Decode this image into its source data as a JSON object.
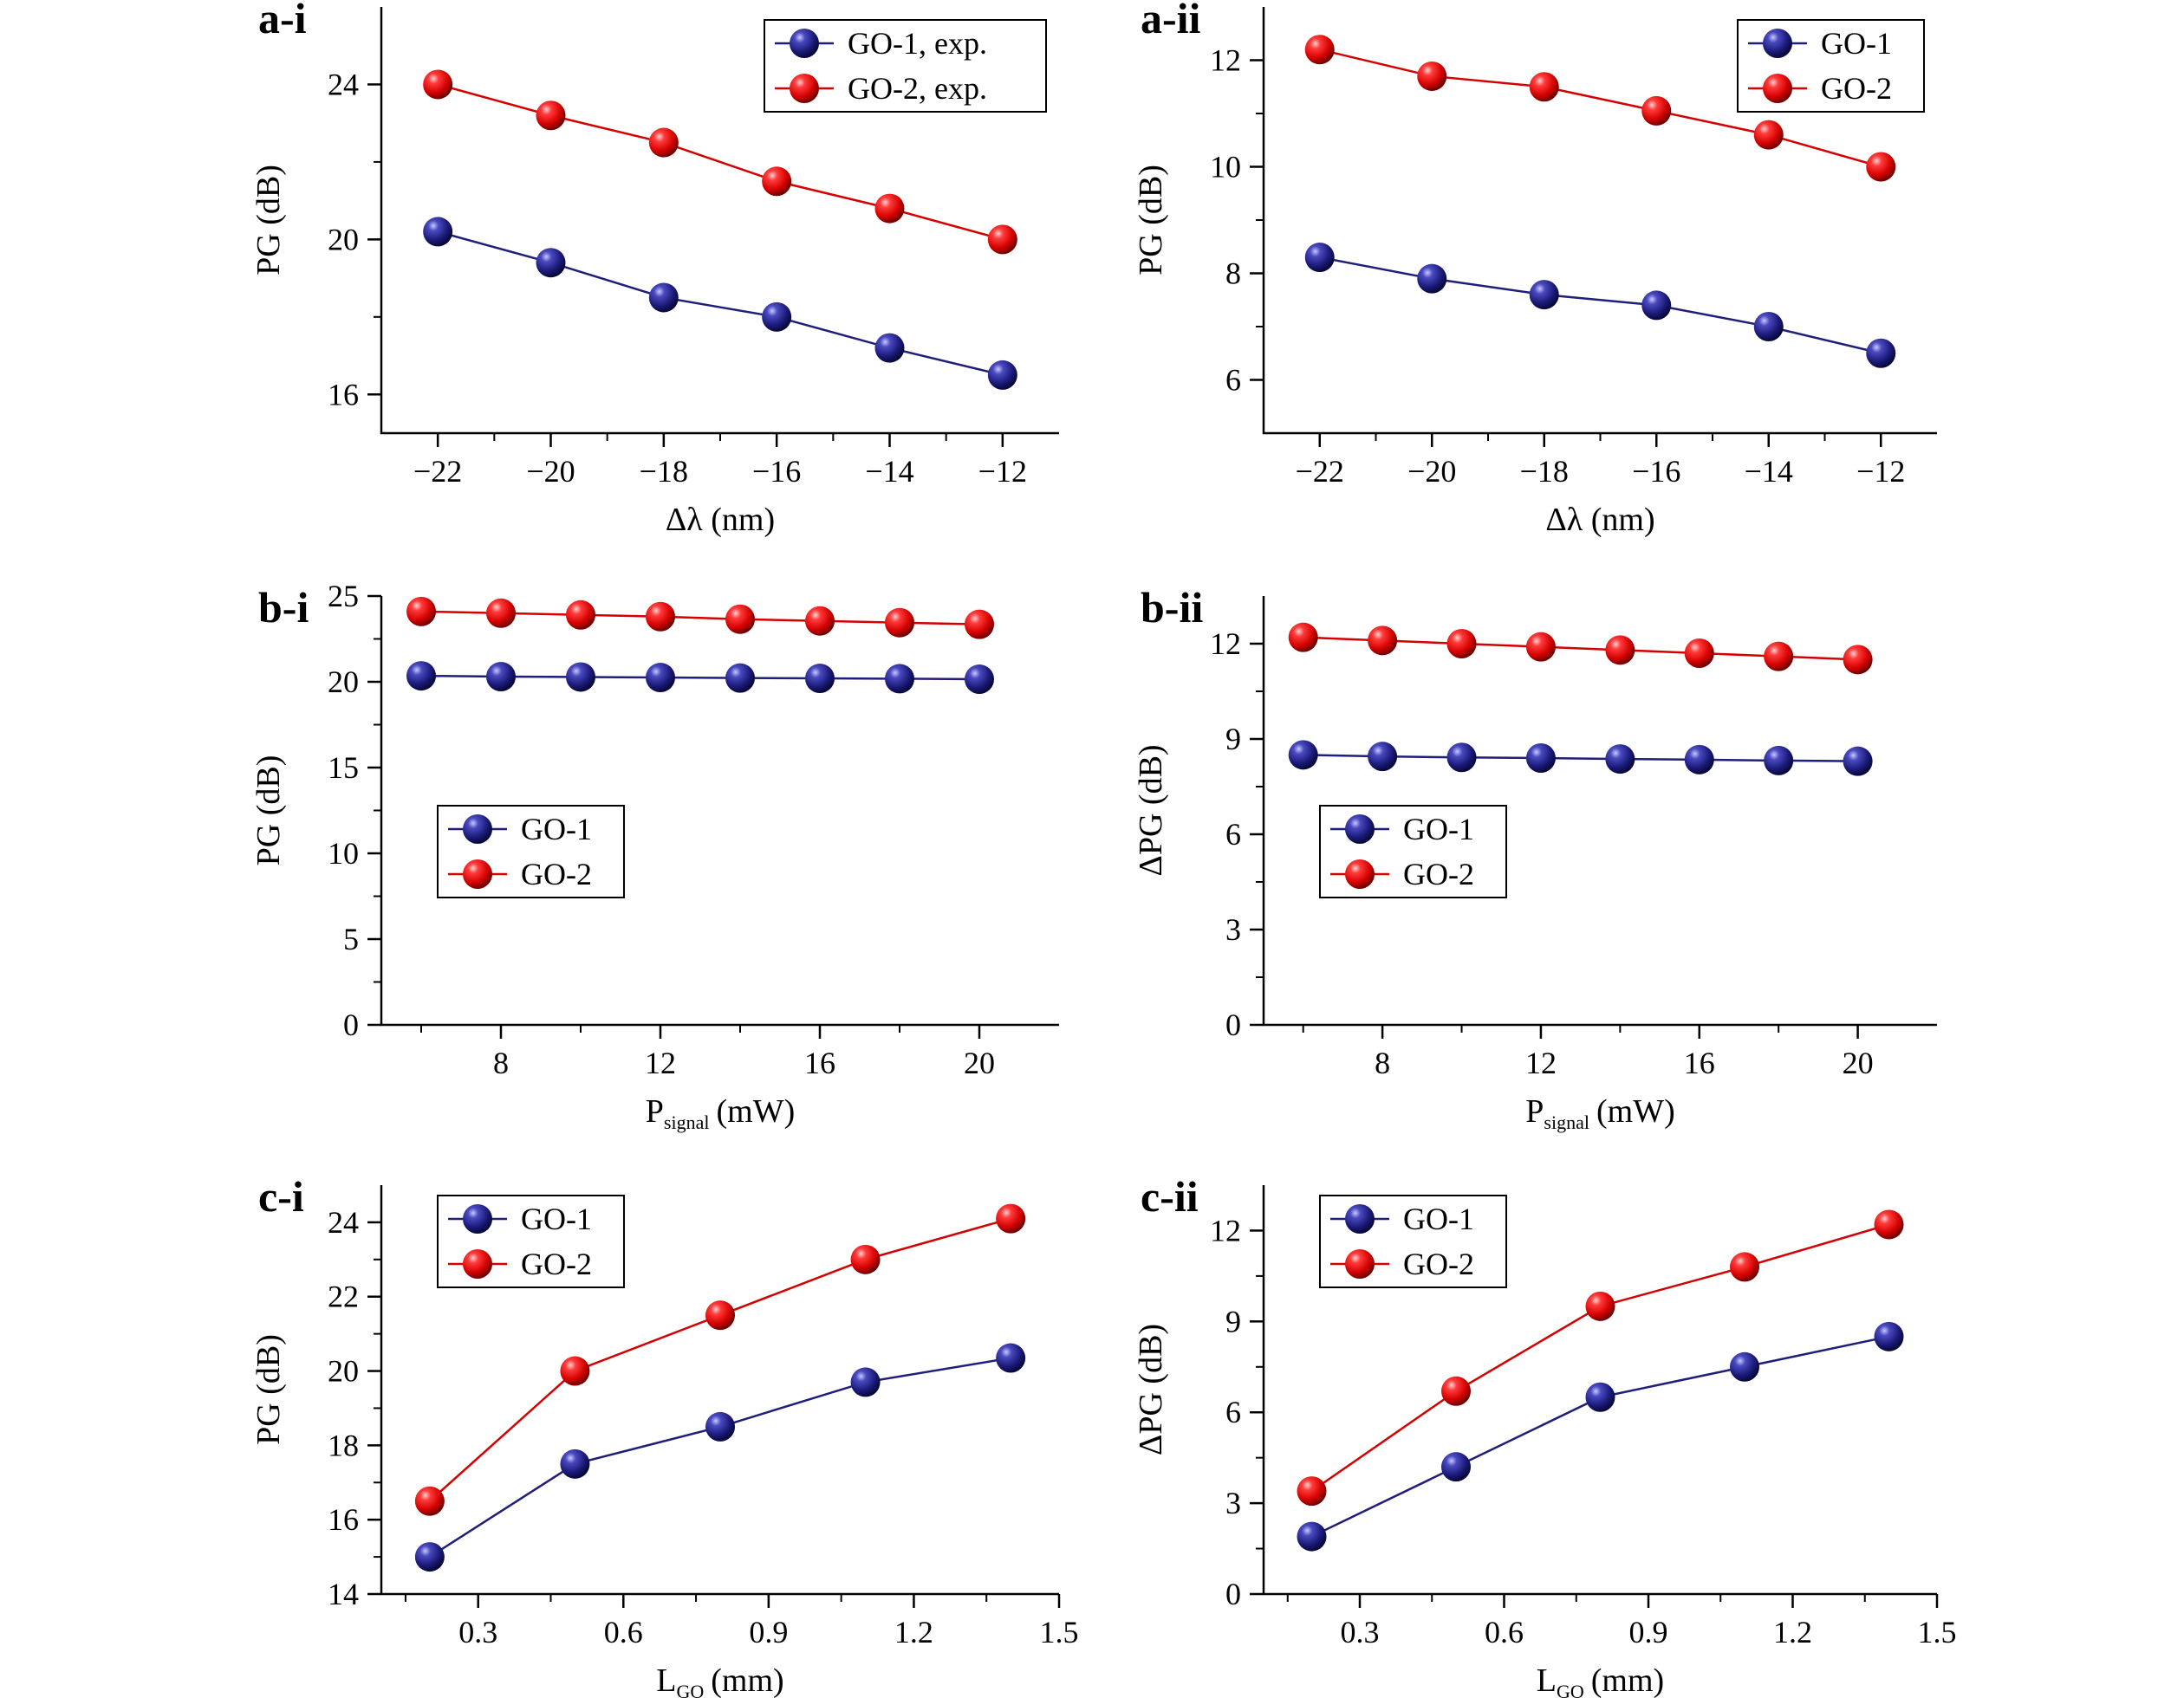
{
  "chart_data": [
    {
      "type": "line",
      "panel_label": "a-i",
      "xlabel": "Δλ (nm)",
      "ylabel": "PG (dB)",
      "xlim": [
        -23,
        -11
      ],
      "ylim": [
        15,
        26
      ],
      "xticks": [
        -22,
        -20,
        -18,
        -16,
        -14,
        -12
      ],
      "xtick_labels": [
        "−22",
        "−20",
        "−18",
        "−16",
        "−14",
        "−12"
      ],
      "yticks": [
        16,
        20,
        24
      ],
      "ytick_labels": [
        "16",
        "20",
        "24"
      ],
      "legend_position": "top-right",
      "x": [
        -22,
        -20,
        -18,
        -16,
        -14,
        -12
      ],
      "series": [
        {
          "name": "GO-1, exp.",
          "color": "#1f1f7a",
          "values": [
            20.2,
            19.4,
            18.5,
            18.0,
            17.2,
            16.5
          ]
        },
        {
          "name": "GO-2, exp.",
          "color": "#d40000",
          "values": [
            24.0,
            23.2,
            22.5,
            21.5,
            20.8,
            20.0
          ]
        }
      ]
    },
    {
      "type": "line",
      "panel_label": "a-ii",
      "xlabel": "Δλ (nm)",
      "ylabel": "PG (dB)",
      "xlim": [
        -23,
        -11
      ],
      "ylim": [
        5,
        13
      ],
      "xticks": [
        -22,
        -20,
        -18,
        -16,
        -14,
        -12
      ],
      "xtick_labels": [
        "−22",
        "−20",
        "−18",
        "−16",
        "−14",
        "−12"
      ],
      "yticks": [
        6,
        8,
        10,
        12
      ],
      "ytick_labels": [
        "6",
        "8",
        "10",
        "12"
      ],
      "legend_position": "top-right",
      "x": [
        -22,
        -20,
        -18,
        -16,
        -14,
        -12
      ],
      "series": [
        {
          "name": "GO-1",
          "color": "#1f1f7a",
          "values": [
            8.3,
            7.9,
            7.6,
            7.4,
            7.0,
            6.5
          ]
        },
        {
          "name": "GO-2",
          "color": "#d40000",
          "values": [
            12.2,
            11.7,
            11.5,
            11.05,
            10.6,
            10.0
          ]
        }
      ]
    },
    {
      "type": "line",
      "panel_label": "b-i",
      "xlabel_main": "P",
      "xlabel_sub": "signal",
      "xlabel_unit": "(mW)",
      "ylabel": "PG (dB)",
      "xlim": [
        5,
        22
      ],
      "ylim": [
        0,
        25
      ],
      "xticks": [
        8,
        12,
        16,
        20
      ],
      "xtick_labels": [
        "8",
        "12",
        "16",
        "20"
      ],
      "yticks": [
        0,
        5,
        10,
        15,
        20,
        25
      ],
      "ytick_labels": [
        "0",
        "5",
        "10",
        "15",
        "20",
        "25"
      ],
      "legend_position": "center-left",
      "x": [
        6,
        8,
        10,
        12,
        14,
        16,
        18,
        20
      ],
      "series": [
        {
          "name": "GO-1",
          "color": "#1f1f7a",
          "values": [
            20.35,
            20.3,
            20.28,
            20.25,
            20.22,
            20.2,
            20.18,
            20.15
          ]
        },
        {
          "name": "GO-2",
          "color": "#d40000",
          "values": [
            24.1,
            24.0,
            23.9,
            23.8,
            23.65,
            23.55,
            23.45,
            23.35
          ]
        }
      ]
    },
    {
      "type": "line",
      "panel_label": "b-ii",
      "xlabel_main": "P",
      "xlabel_sub": "signal",
      "xlabel_unit": "(mW)",
      "ylabel": "ΔPG (dB)",
      "xlim": [
        5,
        22
      ],
      "ylim": [
        0,
        13.5
      ],
      "xticks": [
        8,
        12,
        16,
        20
      ],
      "xtick_labels": [
        "8",
        "12",
        "16",
        "20"
      ],
      "yticks": [
        0,
        3,
        6,
        9,
        12
      ],
      "ytick_labels": [
        "0",
        "3",
        "6",
        "9",
        "12"
      ],
      "legend_position": "center-left",
      "x": [
        6,
        8,
        10,
        12,
        14,
        16,
        18,
        20
      ],
      "series": [
        {
          "name": "GO-1",
          "color": "#1f1f7a",
          "values": [
            8.5,
            8.45,
            8.42,
            8.4,
            8.37,
            8.35,
            8.32,
            8.3
          ]
        },
        {
          "name": "GO-2",
          "color": "#d40000",
          "values": [
            12.2,
            12.1,
            12.0,
            11.9,
            11.8,
            11.7,
            11.6,
            11.5
          ]
        }
      ]
    },
    {
      "type": "line",
      "panel_label": "c-i",
      "xlabel_main": "L",
      "xlabel_sub": "GO",
      "xlabel_unit": "(mm)",
      "ylabel": "PG (dB)",
      "xlim": [
        0.1,
        1.5
      ],
      "ylim": [
        14,
        25
      ],
      "xticks": [
        0.3,
        0.6,
        0.9,
        1.2,
        1.5
      ],
      "xtick_labels": [
        "0.3",
        "0.6",
        "0.9",
        "1.2",
        "1.5"
      ],
      "yticks": [
        14,
        16,
        18,
        20,
        22,
        24
      ],
      "ytick_labels": [
        "14",
        "16",
        "18",
        "20",
        "22",
        "24"
      ],
      "legend_position": "top-left",
      "x": [
        0.2,
        0.5,
        0.8,
        1.1,
        1.4
      ],
      "series": [
        {
          "name": "GO-1",
          "color": "#1f1f7a",
          "values": [
            15.0,
            17.5,
            18.5,
            19.7,
            20.35
          ]
        },
        {
          "name": "GO-2",
          "color": "#d40000",
          "values": [
            16.5,
            20.0,
            21.5,
            23.0,
            24.1
          ]
        }
      ]
    },
    {
      "type": "line",
      "panel_label": "c-ii",
      "xlabel_main": "L",
      "xlabel_sub": "GO",
      "xlabel_unit": "(mm)",
      "ylabel": "ΔPG (dB)",
      "xlim": [
        0.1,
        1.5
      ],
      "ylim": [
        0,
        13.5
      ],
      "xticks": [
        0.3,
        0.6,
        0.9,
        1.2,
        1.5
      ],
      "xtick_labels": [
        "0.3",
        "0.6",
        "0.9",
        "1.2",
        "1.5"
      ],
      "yticks": [
        0,
        3,
        6,
        9,
        12
      ],
      "ytick_labels": [
        "0",
        "3",
        "6",
        "9",
        "12"
      ],
      "legend_position": "top-left",
      "x": [
        0.2,
        0.5,
        0.8,
        1.1,
        1.4
      ],
      "series": [
        {
          "name": "GO-1",
          "color": "#1f1f7a",
          "values": [
            1.9,
            4.2,
            6.5,
            7.5,
            8.5
          ]
        },
        {
          "name": "GO-2",
          "color": "#d40000",
          "values": [
            3.4,
            6.7,
            9.5,
            10.8,
            12.2
          ]
        }
      ]
    }
  ]
}
